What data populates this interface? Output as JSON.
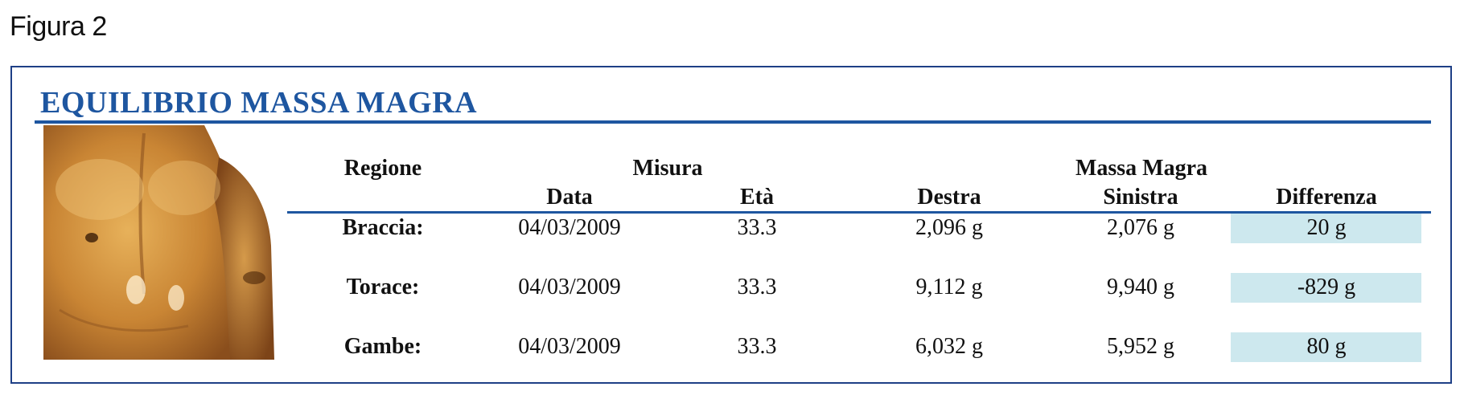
{
  "figure_label": "Figura 2",
  "panel": {
    "title": "EQUILIBRIO MASSA MAGRA",
    "photo_icon": "torso-photo"
  },
  "table": {
    "group_headers": {
      "regione": "Regione",
      "misura": "Misura",
      "massa_magra": "Massa Magra"
    },
    "columns": [
      "Data",
      "Età",
      "Destra",
      "Sinistra",
      "Differenza"
    ],
    "rows": [
      {
        "regione": "Braccia:",
        "data": "04/03/2009",
        "eta": "33.3",
        "destra": "2,096 g",
        "sinistra": "2,076 g",
        "differenza": "20 g"
      },
      {
        "regione": "Torace:",
        "data": "04/03/2009",
        "eta": "33.3",
        "destra": "9,112 g",
        "sinistra": "9,940 g",
        "differenza": "-829 g"
      },
      {
        "regione": "Gambe:",
        "data": "04/03/2009",
        "eta": "33.3",
        "destra": "6,032 g",
        "sinistra": "5,952 g",
        "differenza": "80 g"
      }
    ]
  },
  "colors": {
    "title_blue": "#1e56a0",
    "border_blue": "#1e3f86",
    "diff_highlight": "#cde8ee"
  }
}
